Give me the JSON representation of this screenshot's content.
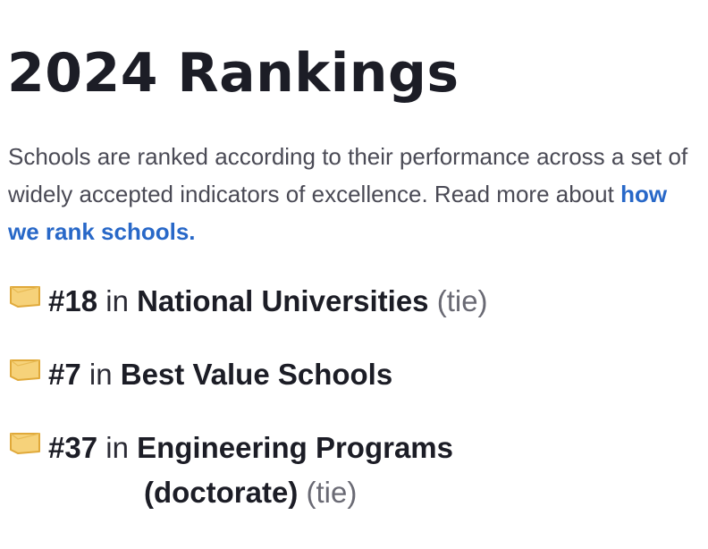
{
  "page": {
    "title": "2024 Rankings"
  },
  "intro": {
    "text": "Schools are ranked according to their performance across a set of widely accepted indicators of excellence. Read more about ",
    "link_label": "how we rank schools."
  },
  "rankings": [
    {
      "rank": "#18",
      "in": "in",
      "category": "National Universities",
      "tie": "(tie)"
    },
    {
      "rank": "#7",
      "in": "in",
      "category": "Best Value Schools"
    },
    {
      "rank": "#37",
      "in": "in",
      "category": "Engineering Programs",
      "category_line2": "(doctorate)",
      "tie": "(tie)"
    }
  ],
  "colors": {
    "link": "#2868c8",
    "icon_fill": "#f6d27a",
    "icon_stroke": "#e0a93a",
    "text_dark": "#1c1d26",
    "text_muted": "#6a6a74"
  },
  "icons": {
    "ranking_badge": "ribbon-badge-icon"
  }
}
